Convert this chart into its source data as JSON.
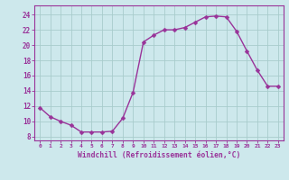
{
  "x": [
    0,
    1,
    2,
    3,
    4,
    5,
    6,
    7,
    8,
    9,
    10,
    11,
    12,
    13,
    14,
    15,
    16,
    17,
    18,
    19,
    20,
    21,
    22,
    23
  ],
  "y": [
    11.8,
    10.6,
    10.0,
    9.5,
    8.6,
    8.6,
    8.6,
    8.7,
    10.4,
    13.8,
    20.4,
    21.3,
    22.0,
    22.0,
    22.3,
    23.0,
    23.7,
    23.8,
    23.7,
    21.8,
    19.2,
    16.7,
    14.6,
    14.6
  ],
  "xlim": [
    -0.5,
    23.5
  ],
  "ylim": [
    7.5,
    25.2
  ],
  "yticks": [
    8,
    10,
    12,
    14,
    16,
    18,
    20,
    22,
    24
  ],
  "xticks": [
    0,
    1,
    2,
    3,
    4,
    5,
    6,
    7,
    8,
    9,
    10,
    11,
    12,
    13,
    14,
    15,
    16,
    17,
    18,
    19,
    20,
    21,
    22,
    23
  ],
  "xlabel": "Windchill (Refroidissement éolien,°C)",
  "line_color": "#993399",
  "bg_color": "#cde8ec",
  "grid_color": "#a8cccc",
  "marker": "D",
  "marker_size": 2.5,
  "line_width": 1.0
}
